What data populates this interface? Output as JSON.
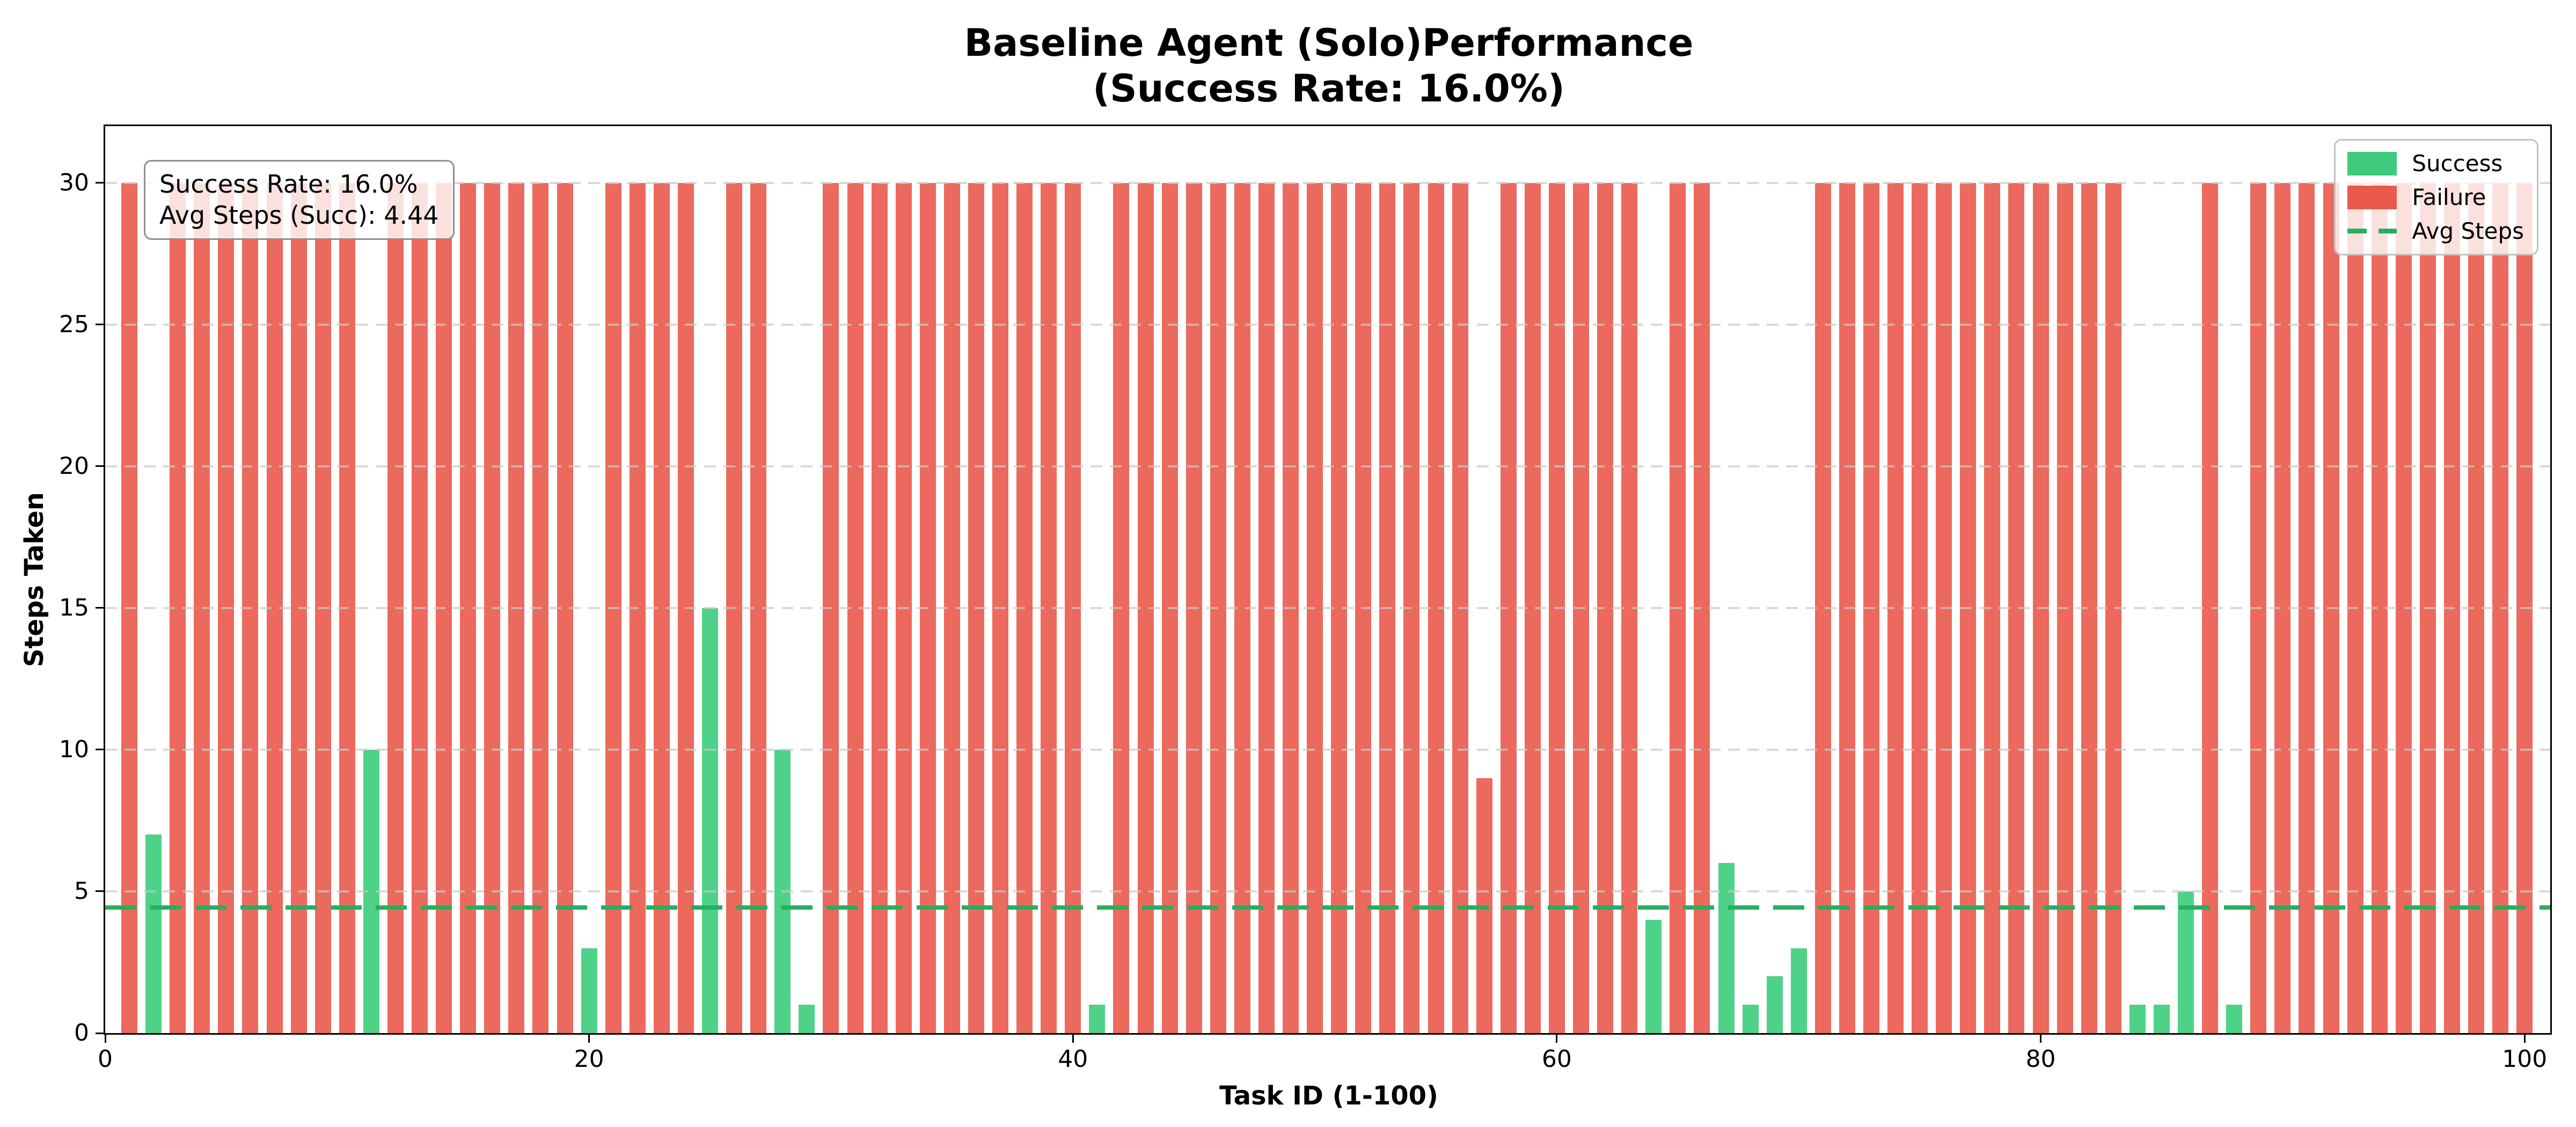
{
  "title": {
    "line1": "Baseline Agent (Solo)Performance",
    "line2": "(Success Rate: 16.0%)"
  },
  "axes": {
    "xlabel": "Task ID (1-100)",
    "ylabel": "Steps Taken",
    "x_tick_labels": [
      "0",
      "20",
      "40",
      "60",
      "80",
      "100"
    ],
    "x_tick_values": [
      0,
      20,
      40,
      60,
      80,
      100
    ],
    "y_tick_labels": [
      "0",
      "5",
      "10",
      "15",
      "20",
      "25",
      "30"
    ],
    "y_tick_values": [
      0,
      5,
      10,
      15,
      20,
      25,
      30
    ],
    "xlim": [
      0,
      101.06
    ],
    "ylim": [
      0,
      32
    ],
    "grid": "horizontal-dashed"
  },
  "annotation": {
    "line1": "Success Rate: 16.0%",
    "line2": "Avg Steps (Succ): 4.44"
  },
  "legend": {
    "position": "upper-right",
    "items": [
      {
        "label": "Success",
        "swatch": "patch",
        "color": "#3ecb7d"
      },
      {
        "label": "Failure",
        "swatch": "patch",
        "color": "#e9594c"
      },
      {
        "label": "Avg Steps",
        "swatch": "dashed-line",
        "color": "#27ae60"
      }
    ]
  },
  "colors": {
    "success_bar": "#4ed287",
    "failure_bar": "#ec695d",
    "avg_line": "#27ae60",
    "grid_line": "#c9c9c9",
    "spine": "#000000"
  },
  "chart_data": {
    "type": "bar",
    "title": "Baseline Agent (Solo)Performance\n(Success Rate: 16.0%)",
    "xlabel": "Task ID (1-100)",
    "ylabel": "Steps Taken",
    "task_id_range": [
      1,
      100
    ],
    "steps": [
      30,
      7,
      30,
      30,
      30,
      30,
      30,
      30,
      30,
      30,
      10,
      30,
      30,
      30,
      30,
      30,
      30,
      30,
      30,
      3,
      30,
      30,
      30,
      30,
      15,
      30,
      30,
      10,
      1,
      30,
      30,
      30,
      30,
      30,
      30,
      30,
      30,
      30,
      30,
      30,
      1,
      30,
      30,
      30,
      30,
      30,
      30,
      30,
      30,
      30,
      30,
      30,
      30,
      30,
      30,
      30,
      9,
      30,
      30,
      30,
      30,
      30,
      30,
      4,
      30,
      30,
      6,
      1,
      2,
      3,
      30,
      30,
      30,
      30,
      30,
      30,
      30,
      30,
      30,
      30,
      30,
      30,
      30,
      1,
      1,
      5,
      30,
      1,
      30,
      30,
      30,
      30,
      30,
      30,
      30,
      30,
      30,
      30,
      30,
      30
    ],
    "success_task_ids": [
      2,
      11,
      20,
      25,
      28,
      29,
      41,
      64,
      67,
      68,
      69,
      70,
      84,
      85,
      86,
      88
    ],
    "success_rate_percent": 16.0,
    "avg_steps_success": 4.44,
    "max_steps": 30,
    "avg_line_value": 4.44,
    "legend_entries": [
      "Success",
      "Failure",
      "Avg Steps"
    ],
    "legend_position": "upper right"
  }
}
